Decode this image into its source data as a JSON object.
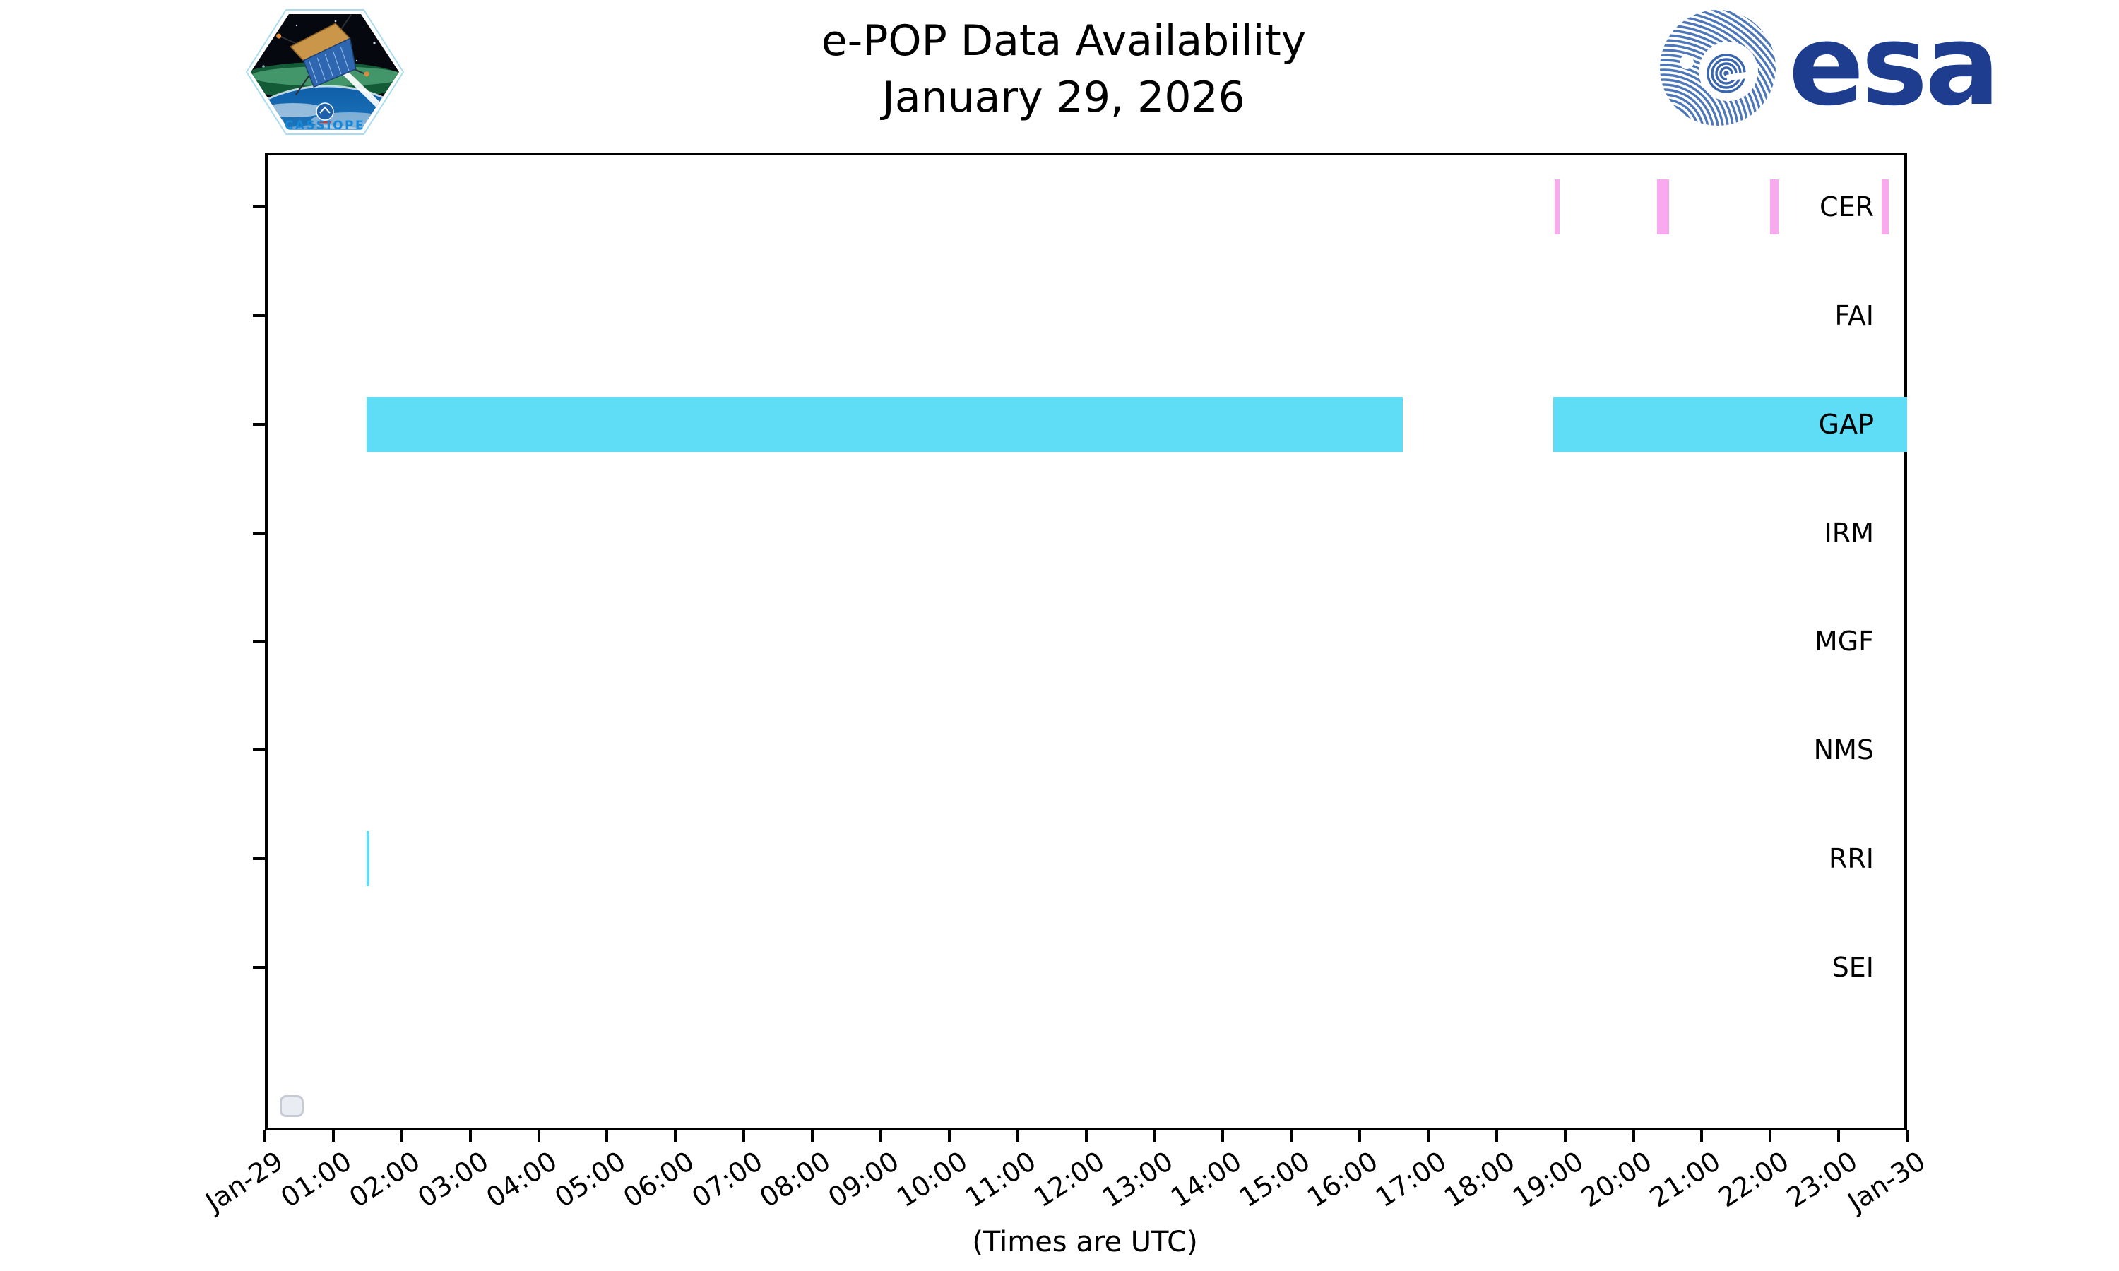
{
  "header": {
    "title_line1": "e-POP Data Availability",
    "title_line2": "January 29, 2026",
    "cassiope_logo_label": "CASSIOPE",
    "esa_logo_label": "esa"
  },
  "chart_data": {
    "type": "timeline",
    "title": "e-POP Data Availability",
    "subtitle": "January 29, 2026",
    "rows": [
      "CER",
      "FAI",
      "GAP",
      "IRM",
      "MGF",
      "NMS",
      "RRI",
      "SEI"
    ],
    "x_tick_labels": [
      "Jan-29",
      "01:00",
      "02:00",
      "03:00",
      "04:00",
      "05:00",
      "06:00",
      "07:00",
      "08:00",
      "09:00",
      "10:00",
      "11:00",
      "12:00",
      "13:00",
      "14:00",
      "15:00",
      "16:00",
      "17:00",
      "18:00",
      "19:00",
      "20:00",
      "21:00",
      "22:00",
      "23:00",
      "Jan-30"
    ],
    "x_range_hours": [
      0,
      24
    ],
    "x_axis_note": "(Times are UTC)",
    "grid": "off",
    "legend": "none",
    "colors": {
      "cyan": "#5FDDF7",
      "pink": "#F9AAEE"
    },
    "intervals": [
      {
        "instrument": "CER",
        "start": "18:51",
        "end": "18:55",
        "color": "pink"
      },
      {
        "instrument": "CER",
        "start": "20:21",
        "end": "20:31",
        "color": "pink"
      },
      {
        "instrument": "CER",
        "start": "22:00",
        "end": "22:07",
        "color": "pink"
      },
      {
        "instrument": "CER",
        "start": "23:38",
        "end": "23:44",
        "color": "pink"
      },
      {
        "instrument": "GAP",
        "start": "01:29",
        "end": "16:38",
        "color": "cyan"
      },
      {
        "instrument": "GAP",
        "start": "18:50",
        "end": "24:00",
        "color": "cyan"
      },
      {
        "instrument": "RRI",
        "start": "01:29",
        "end": "01:31",
        "color": "cyan"
      }
    ]
  },
  "widgets": {
    "checkbox_checked": false
  }
}
